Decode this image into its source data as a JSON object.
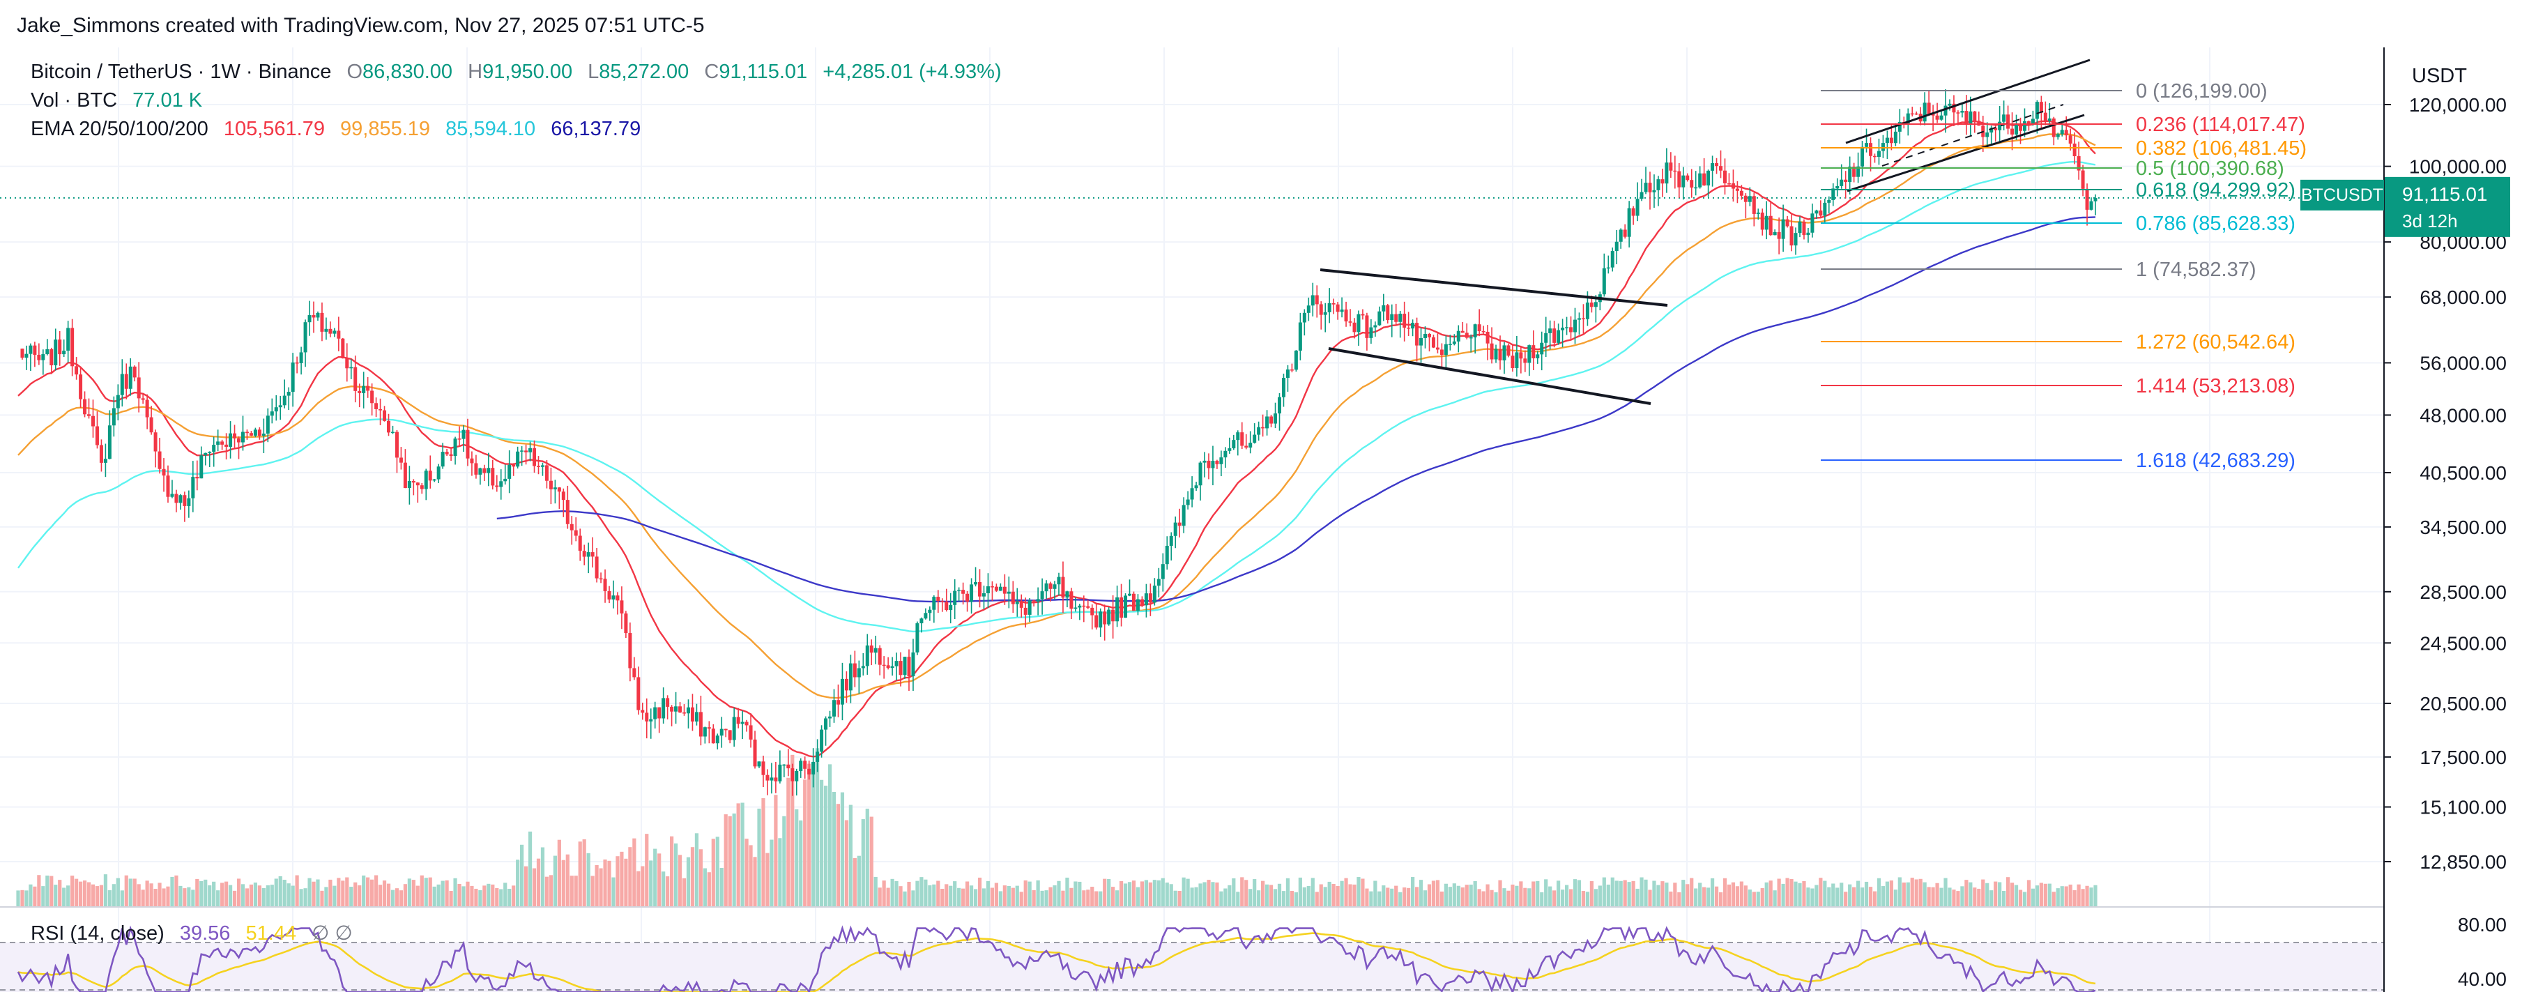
{
  "credit": "Jake_Simmons created with TradingView.com, Nov 27, 2025 07:51 UTC-5",
  "legend": {
    "symbol": "Bitcoin / TetherUS · 1W · Binance",
    "o_label": "O",
    "o_value": "86,830.00",
    "h_label": "H",
    "h_value": "91,950.00",
    "l_label": "L",
    "l_value": "85,272.00",
    "c_label": "C",
    "c_value": "91,115.01",
    "change": "+4,285.01 (+4.93%)",
    "vol_label": "Vol · BTC",
    "vol_value": "77.01 K",
    "ema_label": "EMA 20/50/100/200",
    "ema_values": [
      "105,561.79",
      "99,855.19",
      "85,594.10",
      "66,137.79"
    ],
    "rsi_label": "RSI (14, close)",
    "rsi_value": "39.56",
    "rsi_ma_value": "51.44",
    "rsi_extra": "∅  ∅"
  },
  "price_axis": {
    "currency": "USDT",
    "ticks": [
      "120,000.00",
      "100,000.00",
      "80,000.00",
      "68,000.00",
      "56,000.00",
      "48,000.00",
      "40,500.00",
      "34,500.00",
      "28,500.00",
      "24,500.00",
      "20,500.00",
      "17,500.00",
      "15,100.00",
      "12,850.00"
    ],
    "current_symbol": "BTCUSDT",
    "current_price": "91,115.01",
    "countdown": "3d 12h"
  },
  "rsi_axis": {
    "ticks": [
      "80.00",
      "40.00"
    ]
  },
  "colors": {
    "up": "#089981",
    "down": "#f23645",
    "ema20": "#f23645",
    "ema50": "#f5a033",
    "ema100": "#5ef3f0",
    "ema200": "#3c38c8",
    "rsi": "#7e57c2",
    "rsi_ma": "#f5d21f"
  },
  "chart_data": {
    "type": "candlestick",
    "scale": "log",
    "interval": "1W",
    "ylim": [
      10500,
      140000
    ],
    "ohlc_weekly_approx": [],
    "fib_levels": [
      {
        "ratio": "0",
        "price": "126,199.00",
        "color": "#787b86"
      },
      {
        "ratio": "0.236",
        "price": "114,017.47",
        "color": "#f23645"
      },
      {
        "ratio": "0.382",
        "price": "106,481.45",
        "color": "#ff9800"
      },
      {
        "ratio": "0.5",
        "price": "100,390.68",
        "color": "#4caf50"
      },
      {
        "ratio": "0.618",
        "price": "94,299.92",
        "color": "#089981"
      },
      {
        "ratio": "0.786",
        "price": "85,628.33",
        "color": "#00bcd4"
      },
      {
        "ratio": "1",
        "price": "74,582.37",
        "color": "#787b86"
      },
      {
        "ratio": "1.272",
        "price": "60,542.64",
        "color": "#ff9800"
      },
      {
        "ratio": "1.414",
        "price": "53,213.08",
        "color": "#f23645"
      },
      {
        "ratio": "1.618",
        "price": "42,683.29",
        "color": "#2962ff"
      }
    ],
    "ema_series": [
      {
        "name": "EMA 20",
        "color": "#f23645"
      },
      {
        "name": "EMA 50",
        "color": "#f5a033"
      },
      {
        "name": "EMA 100",
        "color": "#5ef3f0"
      },
      {
        "name": "EMA 200",
        "color": "#3c38c8"
      }
    ],
    "rsi": {
      "name": "RSI (14, close)",
      "last": 39.56,
      "ma_last": 51.44,
      "levels": [
        70,
        30
      ],
      "axis": [
        80,
        40
      ]
    }
  }
}
